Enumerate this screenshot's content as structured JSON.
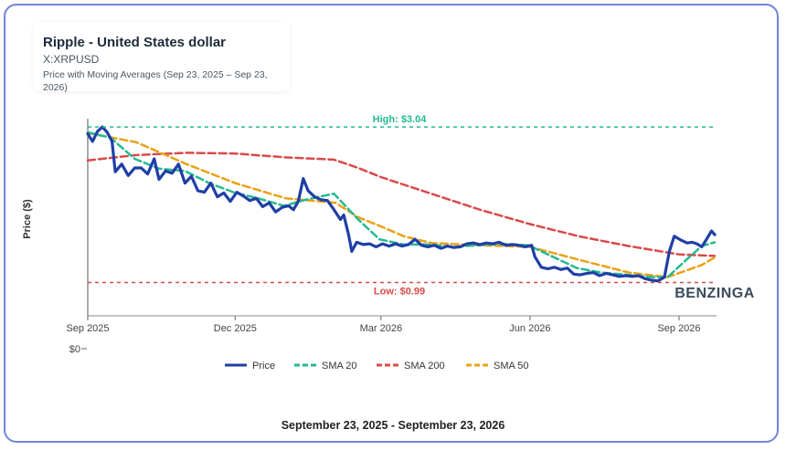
{
  "header": {
    "title": "Ripple - United States dollar",
    "ticker": "X:XRPUSD",
    "subtitle": "Price with Moving Averages (Sep 23, 2025 – Sep 23, 2026)"
  },
  "footer": {
    "date_range": "September 23, 2025 - September 23, 2026"
  },
  "watermark": "BENZINGA",
  "colors": {
    "price": "#1f3fa6",
    "sma20": "#26b893",
    "sma200": "#d84a4a",
    "sma50": "#e8a317",
    "high": "#26b893",
    "low": "#d84a4a"
  },
  "chart_data": {
    "type": "line",
    "title": "Ripple - United States dollar",
    "subtitle": "Price with Moving Averages (Sep 23, 2025 – Sep 23, 2026)",
    "xlabel": "",
    "ylabel": "Price ($)",
    "x_tick_labels": [
      "Sep 2025",
      "Dec 2025",
      "Mar 2026",
      "Jun 2026",
      "Sep 2026"
    ],
    "x_tick_dates": [
      "2025-09-01",
      "2025-12-01",
      "2026-03-01",
      "2026-06-01",
      "2026-09-01"
    ],
    "x_range": [
      "2025-09-01",
      "2026-09-23"
    ],
    "ylim": [
      0,
      3.2
    ],
    "y_tick_labels": [
      "$0"
    ],
    "y_tick_values": [
      0
    ],
    "grid": false,
    "legend_position": "bottom",
    "annotations": [
      {
        "label": "High: $3.04",
        "value": 3.04
      },
      {
        "label": "Low: $0.99",
        "value": 0.99
      }
    ],
    "series": [
      {
        "name": "Price",
        "points": [
          [
            "2025-09-01",
            2.95
          ],
          [
            "2025-09-04",
            2.85
          ],
          [
            "2025-09-07",
            2.98
          ],
          [
            "2025-09-10",
            3.04
          ],
          [
            "2025-09-13",
            2.97
          ],
          [
            "2025-09-16",
            2.85
          ],
          [
            "2025-09-18",
            2.45
          ],
          [
            "2025-09-22",
            2.55
          ],
          [
            "2025-09-26",
            2.4
          ],
          [
            "2025-09-30",
            2.5
          ],
          [
            "2025-10-04",
            2.5
          ],
          [
            "2025-10-08",
            2.42
          ],
          [
            "2025-10-12",
            2.62
          ],
          [
            "2025-10-15",
            2.35
          ],
          [
            "2025-10-19",
            2.46
          ],
          [
            "2025-10-23",
            2.43
          ],
          [
            "2025-10-27",
            2.55
          ],
          [
            "2025-10-31",
            2.3
          ],
          [
            "2025-11-04",
            2.39
          ],
          [
            "2025-11-08",
            2.2
          ],
          [
            "2025-11-12",
            2.18
          ],
          [
            "2025-11-16",
            2.3
          ],
          [
            "2025-11-20",
            2.12
          ],
          [
            "2025-11-24",
            2.17
          ],
          [
            "2025-11-28",
            2.06
          ],
          [
            "2025-12-02",
            2.18
          ],
          [
            "2025-12-06",
            2.13
          ],
          [
            "2025-12-10",
            2.07
          ],
          [
            "2025-12-14",
            2.1
          ],
          [
            "2025-12-18",
            1.99
          ],
          [
            "2025-12-22",
            2.04
          ],
          [
            "2025-12-26",
            1.92
          ],
          [
            "2025-12-30",
            1.98
          ],
          [
            "2026-01-03",
            2.0
          ],
          [
            "2026-01-06",
            1.95
          ],
          [
            "2026-01-09",
            2.06
          ],
          [
            "2026-01-12",
            2.36
          ],
          [
            "2026-01-15",
            2.2
          ],
          [
            "2026-01-19",
            2.12
          ],
          [
            "2026-01-23",
            2.08
          ],
          [
            "2026-01-27",
            2.07
          ],
          [
            "2026-01-31",
            1.95
          ],
          [
            "2026-02-04",
            1.82
          ],
          [
            "2026-02-06",
            1.88
          ],
          [
            "2026-02-09",
            1.62
          ],
          [
            "2026-02-11",
            1.4
          ],
          [
            "2026-02-14",
            1.52
          ],
          [
            "2026-02-18",
            1.49
          ],
          [
            "2026-02-22",
            1.5
          ],
          [
            "2026-02-26",
            1.46
          ],
          [
            "2026-03-02",
            1.5
          ],
          [
            "2026-03-06",
            1.47
          ],
          [
            "2026-03-10",
            1.5
          ],
          [
            "2026-03-14",
            1.47
          ],
          [
            "2026-03-18",
            1.49
          ],
          [
            "2026-03-22",
            1.56
          ],
          [
            "2026-03-26",
            1.48
          ],
          [
            "2026-03-30",
            1.46
          ],
          [
            "2026-04-03",
            1.48
          ],
          [
            "2026-04-07",
            1.44
          ],
          [
            "2026-04-11",
            1.47
          ],
          [
            "2026-04-15",
            1.45
          ],
          [
            "2026-04-19",
            1.46
          ],
          [
            "2026-04-23",
            1.5
          ],
          [
            "2026-04-27",
            1.51
          ],
          [
            "2026-05-01",
            1.49
          ],
          [
            "2026-05-05",
            1.51
          ],
          [
            "2026-05-09",
            1.5
          ],
          [
            "2026-05-13",
            1.52
          ],
          [
            "2026-05-17",
            1.48
          ],
          [
            "2026-05-21",
            1.49
          ],
          [
            "2026-05-25",
            1.48
          ],
          [
            "2026-05-29",
            1.46
          ],
          [
            "2026-06-02",
            1.48
          ],
          [
            "2026-06-04",
            1.33
          ],
          [
            "2026-06-08",
            1.19
          ],
          [
            "2026-06-12",
            1.17
          ],
          [
            "2026-06-16",
            1.19
          ],
          [
            "2026-06-20",
            1.16
          ],
          [
            "2026-06-24",
            1.18
          ],
          [
            "2026-06-28",
            1.1
          ],
          [
            "2026-07-02",
            1.09
          ],
          [
            "2026-07-06",
            1.11
          ],
          [
            "2026-07-10",
            1.12
          ],
          [
            "2026-07-14",
            1.08
          ],
          [
            "2026-07-18",
            1.11
          ],
          [
            "2026-07-22",
            1.09
          ],
          [
            "2026-07-26",
            1.07
          ],
          [
            "2026-07-30",
            1.08
          ],
          [
            "2026-08-03",
            1.07
          ],
          [
            "2026-08-07",
            1.08
          ],
          [
            "2026-08-11",
            1.04
          ],
          [
            "2026-08-15",
            1.02
          ],
          [
            "2026-08-19",
            1.01
          ],
          [
            "2026-08-23",
            1.06
          ],
          [
            "2026-08-26",
            1.4
          ],
          [
            "2026-08-29",
            1.6
          ],
          [
            "2026-09-02",
            1.55
          ],
          [
            "2026-09-06",
            1.51
          ],
          [
            "2026-09-09",
            1.52
          ],
          [
            "2026-09-12",
            1.5
          ],
          [
            "2026-09-15",
            1.46
          ],
          [
            "2026-09-18",
            1.56
          ],
          [
            "2026-09-21",
            1.67
          ],
          [
            "2026-09-23",
            1.62
          ]
        ]
      },
      {
        "name": "SMA 20",
        "points": [
          [
            "2025-09-01",
            2.97
          ],
          [
            "2025-09-15",
            2.9
          ],
          [
            "2025-09-30",
            2.62
          ],
          [
            "2025-10-15",
            2.49
          ],
          [
            "2025-10-31",
            2.46
          ],
          [
            "2025-11-15",
            2.3
          ],
          [
            "2025-11-30",
            2.18
          ],
          [
            "2025-12-15",
            2.1
          ],
          [
            "2025-12-31",
            2.0
          ],
          [
            "2026-01-15",
            2.09
          ],
          [
            "2026-01-31",
            2.16
          ],
          [
            "2026-02-15",
            1.82
          ],
          [
            "2026-02-28",
            1.56
          ],
          [
            "2026-03-15",
            1.49
          ],
          [
            "2026-03-31",
            1.49
          ],
          [
            "2026-04-15",
            1.46
          ],
          [
            "2026-04-30",
            1.48
          ],
          [
            "2026-05-15",
            1.5
          ],
          [
            "2026-05-31",
            1.48
          ],
          [
            "2026-06-15",
            1.33
          ],
          [
            "2026-06-30",
            1.18
          ],
          [
            "2026-07-15",
            1.12
          ],
          [
            "2026-07-31",
            1.09
          ],
          [
            "2026-08-15",
            1.06
          ],
          [
            "2026-08-25",
            1.06
          ],
          [
            "2026-09-05",
            1.28
          ],
          [
            "2026-09-15",
            1.47
          ],
          [
            "2026-09-23",
            1.52
          ]
        ]
      },
      {
        "name": "SMA 200",
        "points": [
          [
            "2025-09-01",
            2.6
          ],
          [
            "2025-10-01",
            2.67
          ],
          [
            "2025-11-01",
            2.7
          ],
          [
            "2025-12-01",
            2.69
          ],
          [
            "2026-01-01",
            2.64
          ],
          [
            "2026-01-31",
            2.61
          ],
          [
            "2026-02-15",
            2.5
          ],
          [
            "2026-03-01",
            2.38
          ],
          [
            "2026-04-01",
            2.16
          ],
          [
            "2026-05-01",
            1.95
          ],
          [
            "2026-06-01",
            1.76
          ],
          [
            "2026-07-01",
            1.6
          ],
          [
            "2026-08-01",
            1.47
          ],
          [
            "2026-09-01",
            1.36
          ],
          [
            "2026-09-23",
            1.34
          ]
        ]
      },
      {
        "name": "SMA 50",
        "points": [
          [
            "2025-09-01",
            2.96
          ],
          [
            "2025-10-01",
            2.84
          ],
          [
            "2025-11-01",
            2.55
          ],
          [
            "2025-12-01",
            2.3
          ],
          [
            "2026-01-01",
            2.1
          ],
          [
            "2026-02-01",
            2.04
          ],
          [
            "2026-02-15",
            1.85
          ],
          [
            "2026-03-01",
            1.73
          ],
          [
            "2026-03-15",
            1.6
          ],
          [
            "2026-04-01",
            1.51
          ],
          [
            "2026-05-01",
            1.48
          ],
          [
            "2026-06-01",
            1.46
          ],
          [
            "2026-07-01",
            1.29
          ],
          [
            "2026-08-01",
            1.12
          ],
          [
            "2026-08-25",
            1.06
          ],
          [
            "2026-09-15",
            1.22
          ],
          [
            "2026-09-23",
            1.32
          ]
        ]
      }
    ]
  }
}
